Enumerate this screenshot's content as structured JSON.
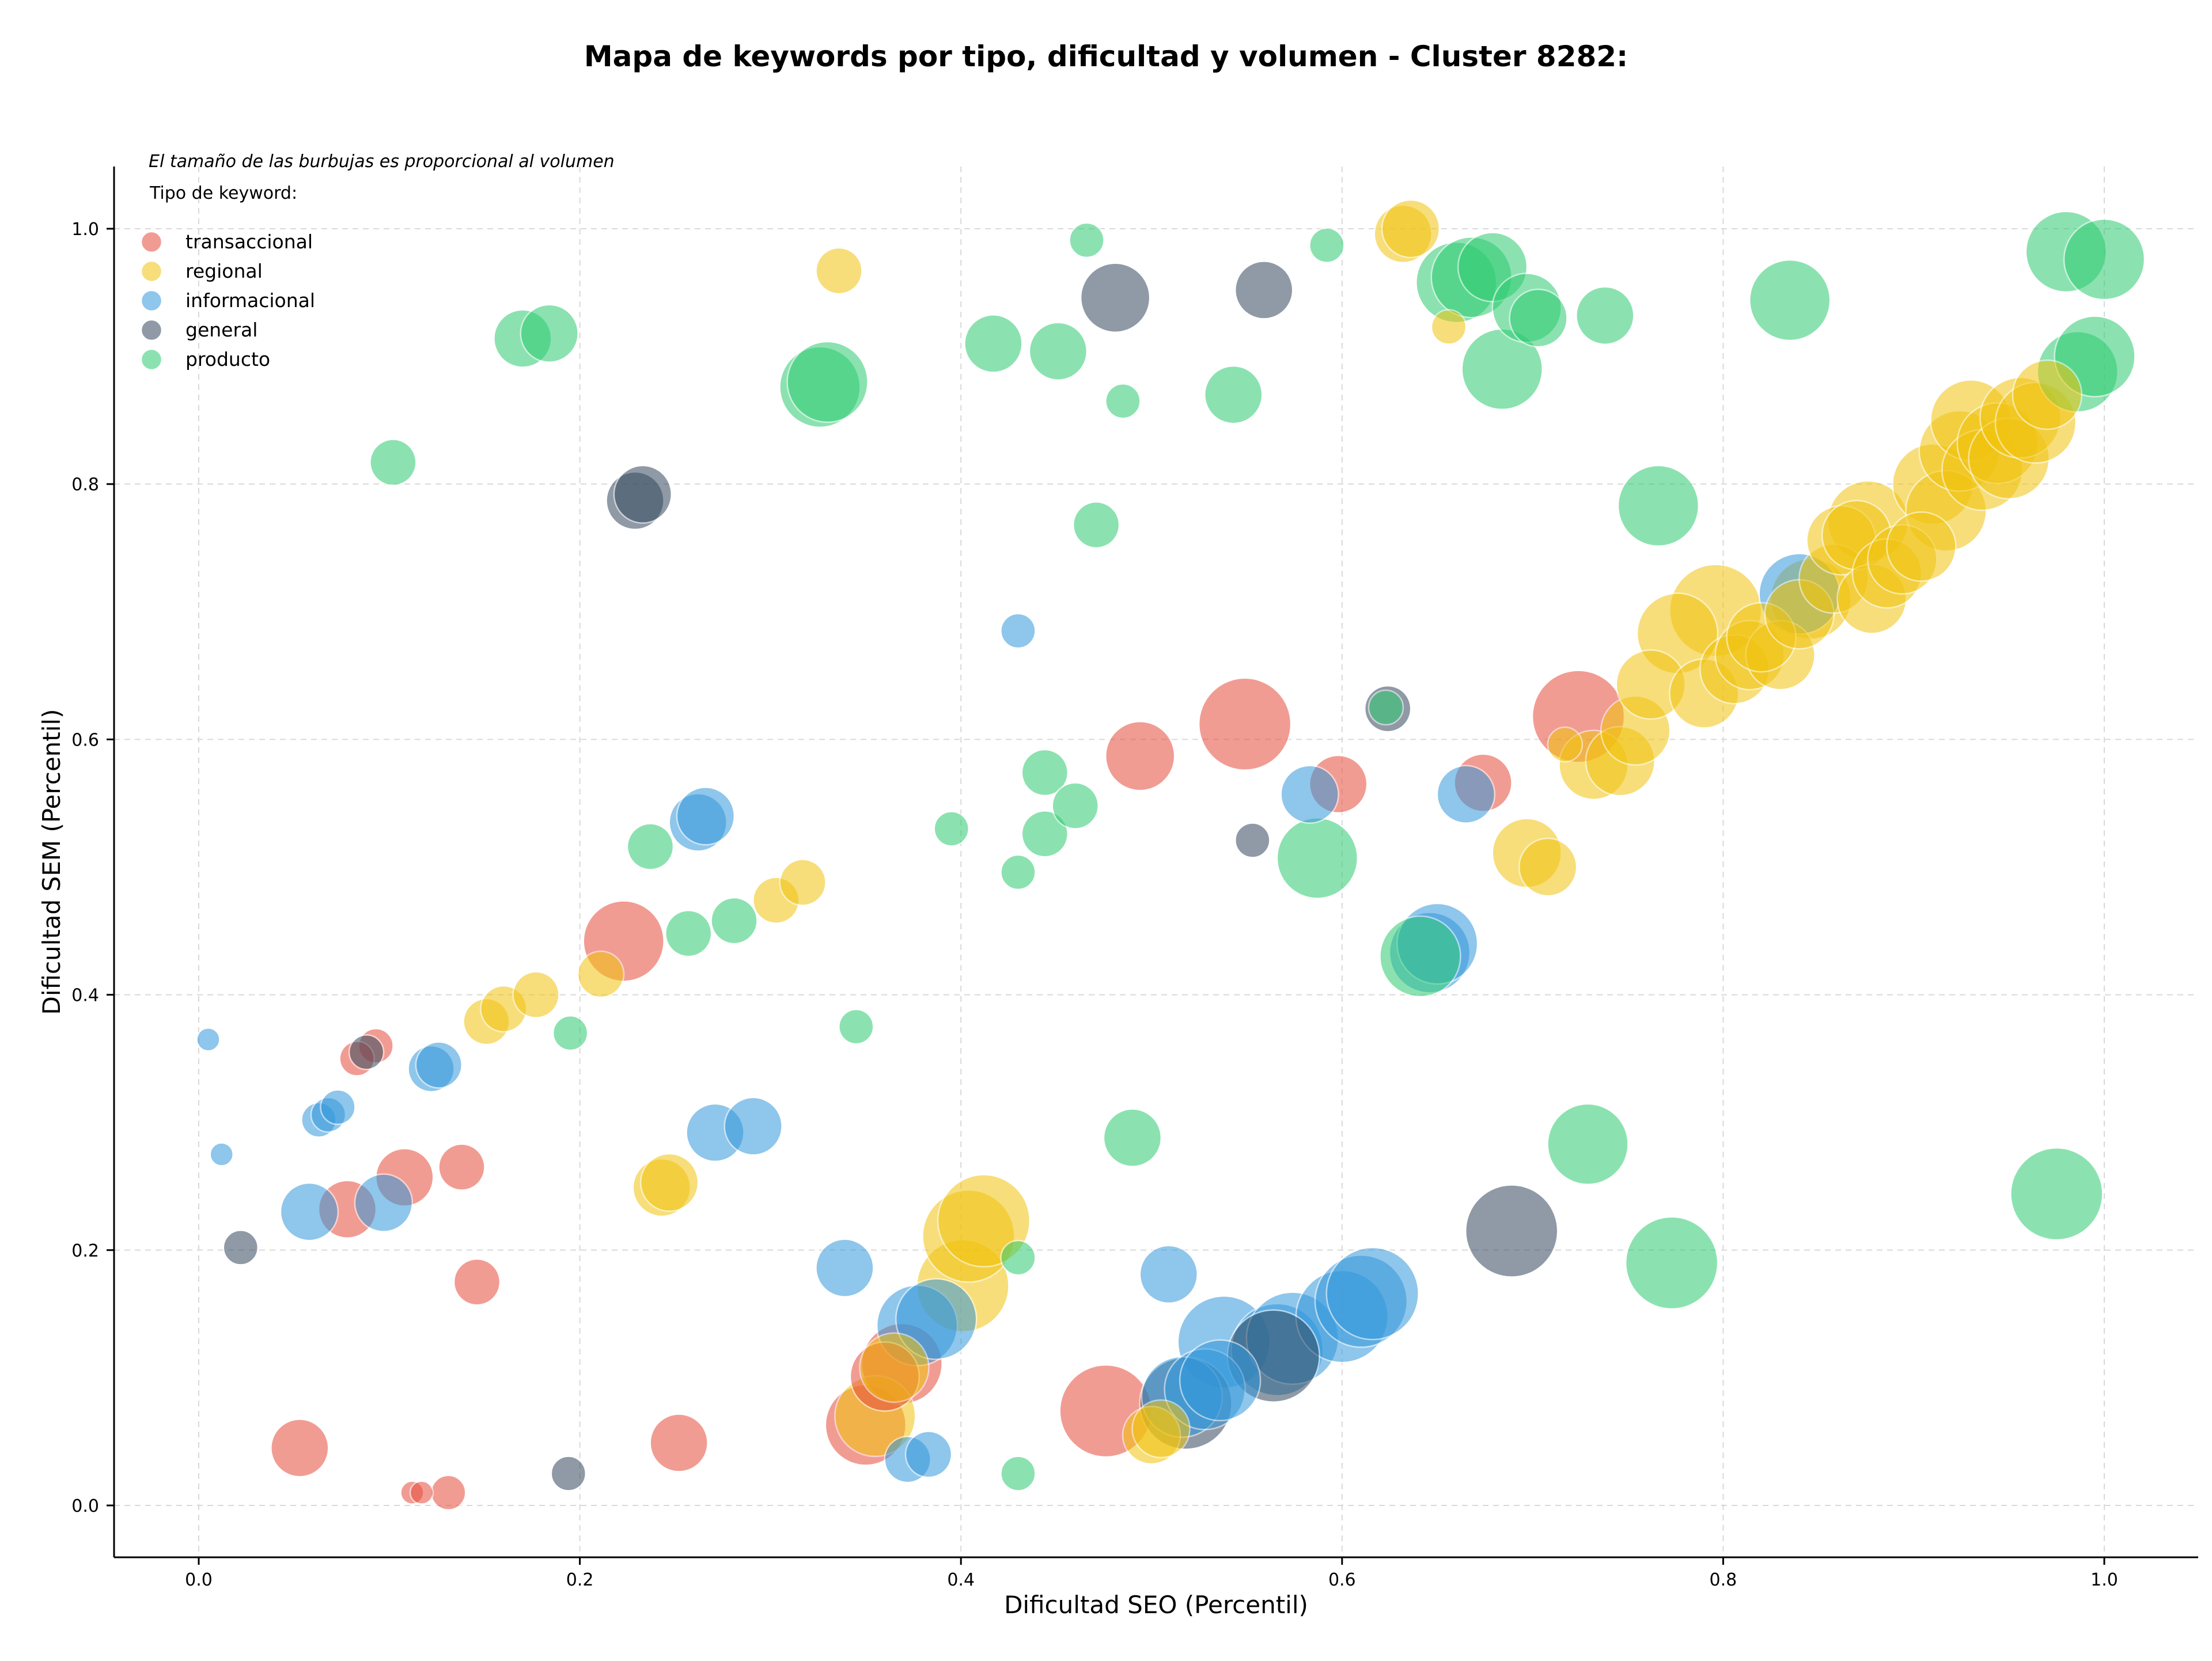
{
  "chart_data": {
    "type": "scatter",
    "title": "Mapa de keywords por tipo, dificultad y volumen - Cluster 8282:",
    "xlabel": "Dificultad SEO (Percentil)",
    "ylabel": "Dificultad SEM (Percentil)",
    "xlim": [
      -0.045,
      1.05
    ],
    "ylim": [
      -0.04,
      1.05
    ],
    "x_ticks": [
      "0.0",
      "0.2",
      "0.4",
      "0.6",
      "0.8",
      "1.0"
    ],
    "y_ticks": [
      "0.0",
      "0.2",
      "0.4",
      "0.6",
      "0.8",
      "1.0"
    ],
    "grid": true,
    "legend_placement": "top-left",
    "legend_note": "El tamaño de las burbujas es proporcional al volumen",
    "legend_title": "Tipo de keyword:",
    "series": [
      {
        "name": "transaccional",
        "color": "#e74c3c",
        "points": [
          [
            0.093,
            0.36,
            2
          ],
          [
            0.083,
            0.35,
            2
          ],
          [
            0.108,
            0.257,
            4
          ],
          [
            0.078,
            0.232,
            4
          ],
          [
            0.138,
            0.265,
            3
          ],
          [
            0.146,
            0.175,
            3
          ],
          [
            0.053,
            0.045,
            4
          ],
          [
            0.112,
            0.01,
            1
          ],
          [
            0.117,
            0.01,
            1
          ],
          [
            0.131,
            0.01,
            2
          ],
          [
            0.252,
            0.049,
            4
          ],
          [
            0.223,
            0.442,
            6
          ],
          [
            0.494,
            0.587,
            5
          ],
          [
            0.549,
            0.612,
            7
          ],
          [
            0.598,
            0.565,
            4
          ],
          [
            0.674,
            0.566,
            4
          ],
          [
            0.724,
            0.618,
            7
          ],
          [
            0.476,
            0.074,
            7
          ],
          [
            0.35,
            0.063,
            6
          ],
          [
            0.36,
            0.101,
            5
          ],
          [
            0.369,
            0.111,
            6
          ]
        ]
      },
      {
        "name": "regional",
        "color": "#f1c40f",
        "points": [
          [
            0.336,
            0.967,
            3
          ],
          [
            0.632,
            0.996,
            4
          ],
          [
            0.636,
            1.0,
            4
          ],
          [
            0.656,
            0.923,
            2
          ],
          [
            0.151,
            0.379,
            3
          ],
          [
            0.16,
            0.389,
            3
          ],
          [
            0.177,
            0.4,
            3
          ],
          [
            0.211,
            0.416,
            3
          ],
          [
            0.303,
            0.474,
            3
          ],
          [
            0.317,
            0.488,
            3
          ],
          [
            0.243,
            0.249,
            4
          ],
          [
            0.247,
            0.253,
            4
          ],
          [
            0.401,
            0.172,
            7
          ],
          [
            0.404,
            0.211,
            7
          ],
          [
            0.412,
            0.223,
            7
          ],
          [
            0.355,
            0.07,
            6
          ],
          [
            0.365,
            0.108,
            5
          ],
          [
            0.5,
            0.055,
            4
          ],
          [
            0.505,
            0.06,
            4
          ],
          [
            0.697,
            0.511,
            5
          ],
          [
            0.708,
            0.5,
            4
          ],
          [
            0.717,
            0.596,
            2
          ],
          [
            0.732,
            0.58,
            5
          ],
          [
            0.746,
            0.583,
            5
          ],
          [
            0.754,
            0.607,
            5
          ],
          [
            0.762,
            0.643,
            5
          ],
          [
            0.79,
            0.636,
            5
          ],
          [
            0.776,
            0.683,
            6
          ],
          [
            0.796,
            0.701,
            7
          ],
          [
            0.806,
            0.655,
            5
          ],
          [
            0.814,
            0.666,
            5
          ],
          [
            0.83,
            0.666,
            5
          ],
          [
            0.82,
            0.68,
            5
          ],
          [
            0.84,
            0.698,
            5
          ],
          [
            0.846,
            0.71,
            6
          ],
          [
            0.858,
            0.726,
            5
          ],
          [
            0.862,
            0.756,
            5
          ],
          [
            0.87,
            0.76,
            5
          ],
          [
            0.876,
            0.771,
            6
          ],
          [
            0.878,
            0.71,
            5
          ],
          [
            0.886,
            0.73,
            5
          ],
          [
            0.894,
            0.741,
            5
          ],
          [
            0.904,
            0.751,
            5
          ],
          [
            0.91,
            0.8,
            6
          ],
          [
            0.917,
            0.779,
            6
          ],
          [
            0.924,
            0.826,
            6
          ],
          [
            0.93,
            0.85,
            6
          ],
          [
            0.936,
            0.811,
            6
          ],
          [
            0.944,
            0.832,
            6
          ],
          [
            0.95,
            0.82,
            6
          ],
          [
            0.956,
            0.852,
            6
          ],
          [
            0.964,
            0.848,
            6
          ],
          [
            0.97,
            0.87,
            5
          ]
        ]
      },
      {
        "name": "informacional",
        "color": "#3498db",
        "points": [
          [
            0.005,
            0.365,
            1
          ],
          [
            0.012,
            0.275,
            1
          ],
          [
            0.063,
            0.302,
            2
          ],
          [
            0.068,
            0.306,
            2
          ],
          [
            0.073,
            0.312,
            2
          ],
          [
            0.122,
            0.342,
            3
          ],
          [
            0.126,
            0.345,
            3
          ],
          [
            0.058,
            0.23,
            4
          ],
          [
            0.097,
            0.237,
            4
          ],
          [
            0.262,
            0.535,
            4
          ],
          [
            0.266,
            0.54,
            4
          ],
          [
            0.271,
            0.292,
            4
          ],
          [
            0.291,
            0.297,
            4
          ],
          [
            0.339,
            0.186,
            4
          ],
          [
            0.372,
            0.036,
            3
          ],
          [
            0.383,
            0.04,
            3
          ],
          [
            0.377,
            0.141,
            6
          ],
          [
            0.387,
            0.146,
            6
          ],
          [
            0.43,
            0.685,
            2
          ],
          [
            0.509,
            0.181,
            4
          ],
          [
            0.516,
            0.085,
            6
          ],
          [
            0.528,
            0.091,
            6
          ],
          [
            0.536,
            0.098,
            6
          ],
          [
            0.538,
            0.128,
            7
          ],
          [
            0.566,
            0.122,
            7
          ],
          [
            0.574,
            0.131,
            7
          ],
          [
            0.6,
            0.148,
            7
          ],
          [
            0.61,
            0.16,
            7
          ],
          [
            0.616,
            0.166,
            7
          ],
          [
            0.583,
            0.557,
            4
          ],
          [
            0.665,
            0.557,
            4
          ],
          [
            0.646,
            0.433,
            6
          ],
          [
            0.65,
            0.44,
            6
          ],
          [
            0.84,
            0.714,
            6
          ]
        ]
      },
      {
        "name": "general",
        "color": "#34495e",
        "points": [
          [
            0.088,
            0.355,
            2
          ],
          [
            0.022,
            0.202,
            2
          ],
          [
            0.194,
            0.025,
            2
          ],
          [
            0.229,
            0.787,
            4
          ],
          [
            0.233,
            0.792,
            4
          ],
          [
            0.481,
            0.946,
            5
          ],
          [
            0.559,
            0.952,
            4
          ],
          [
            0.553,
            0.521,
            2
          ],
          [
            0.624,
            0.624,
            3
          ],
          [
            0.518,
            0.08,
            7
          ],
          [
            0.564,
            0.117,
            7
          ],
          [
            0.689,
            0.215,
            7
          ]
        ]
      },
      {
        "name": "producto",
        "color": "#2ecc71",
        "points": [
          [
            0.102,
            0.817,
            3
          ],
          [
            0.17,
            0.914,
            4
          ],
          [
            0.184,
            0.918,
            4
          ],
          [
            0.326,
            0.876,
            6
          ],
          [
            0.33,
            0.88,
            6
          ],
          [
            0.195,
            0.37,
            2
          ],
          [
            0.237,
            0.516,
            3
          ],
          [
            0.257,
            0.448,
            3
          ],
          [
            0.281,
            0.458,
            3
          ],
          [
            0.345,
            0.375,
            2
          ],
          [
            0.395,
            0.53,
            2
          ],
          [
            0.43,
            0.496,
            2
          ],
          [
            0.43,
            0.194,
            2
          ],
          [
            0.43,
            0.025,
            2
          ],
          [
            0.417,
            0.91,
            4
          ],
          [
            0.451,
            0.904,
            4
          ],
          [
            0.466,
            0.991,
            2
          ],
          [
            0.471,
            0.768,
            3
          ],
          [
            0.485,
            0.865,
            2
          ],
          [
            0.49,
            0.288,
            4
          ],
          [
            0.444,
            0.574,
            3
          ],
          [
            0.444,
            0.526,
            3
          ],
          [
            0.46,
            0.548,
            3
          ],
          [
            0.543,
            0.87,
            4
          ],
          [
            0.587,
            0.507,
            6
          ],
          [
            0.592,
            0.987,
            2
          ],
          [
            0.623,
            0.625,
            2
          ],
          [
            0.641,
            0.43,
            6
          ],
          [
            0.66,
            0.958,
            6
          ],
          [
            0.668,
            0.962,
            6
          ],
          [
            0.679,
            0.97,
            5
          ],
          [
            0.684,
            0.89,
            6
          ],
          [
            0.697,
            0.938,
            5
          ],
          [
            0.703,
            0.93,
            4
          ],
          [
            0.738,
            0.932,
            4
          ],
          [
            0.729,
            0.283,
            6
          ],
          [
            0.766,
            0.783,
            6
          ],
          [
            0.773,
            0.19,
            7
          ],
          [
            0.835,
            0.944,
            6
          ],
          [
            0.975,
            0.244,
            7
          ],
          [
            0.98,
            0.982,
            6
          ],
          [
            1.0,
            0.976,
            6
          ],
          [
            0.986,
            0.888,
            6
          ],
          [
            0.995,
            0.9,
            6
          ]
        ]
      }
    ]
  }
}
